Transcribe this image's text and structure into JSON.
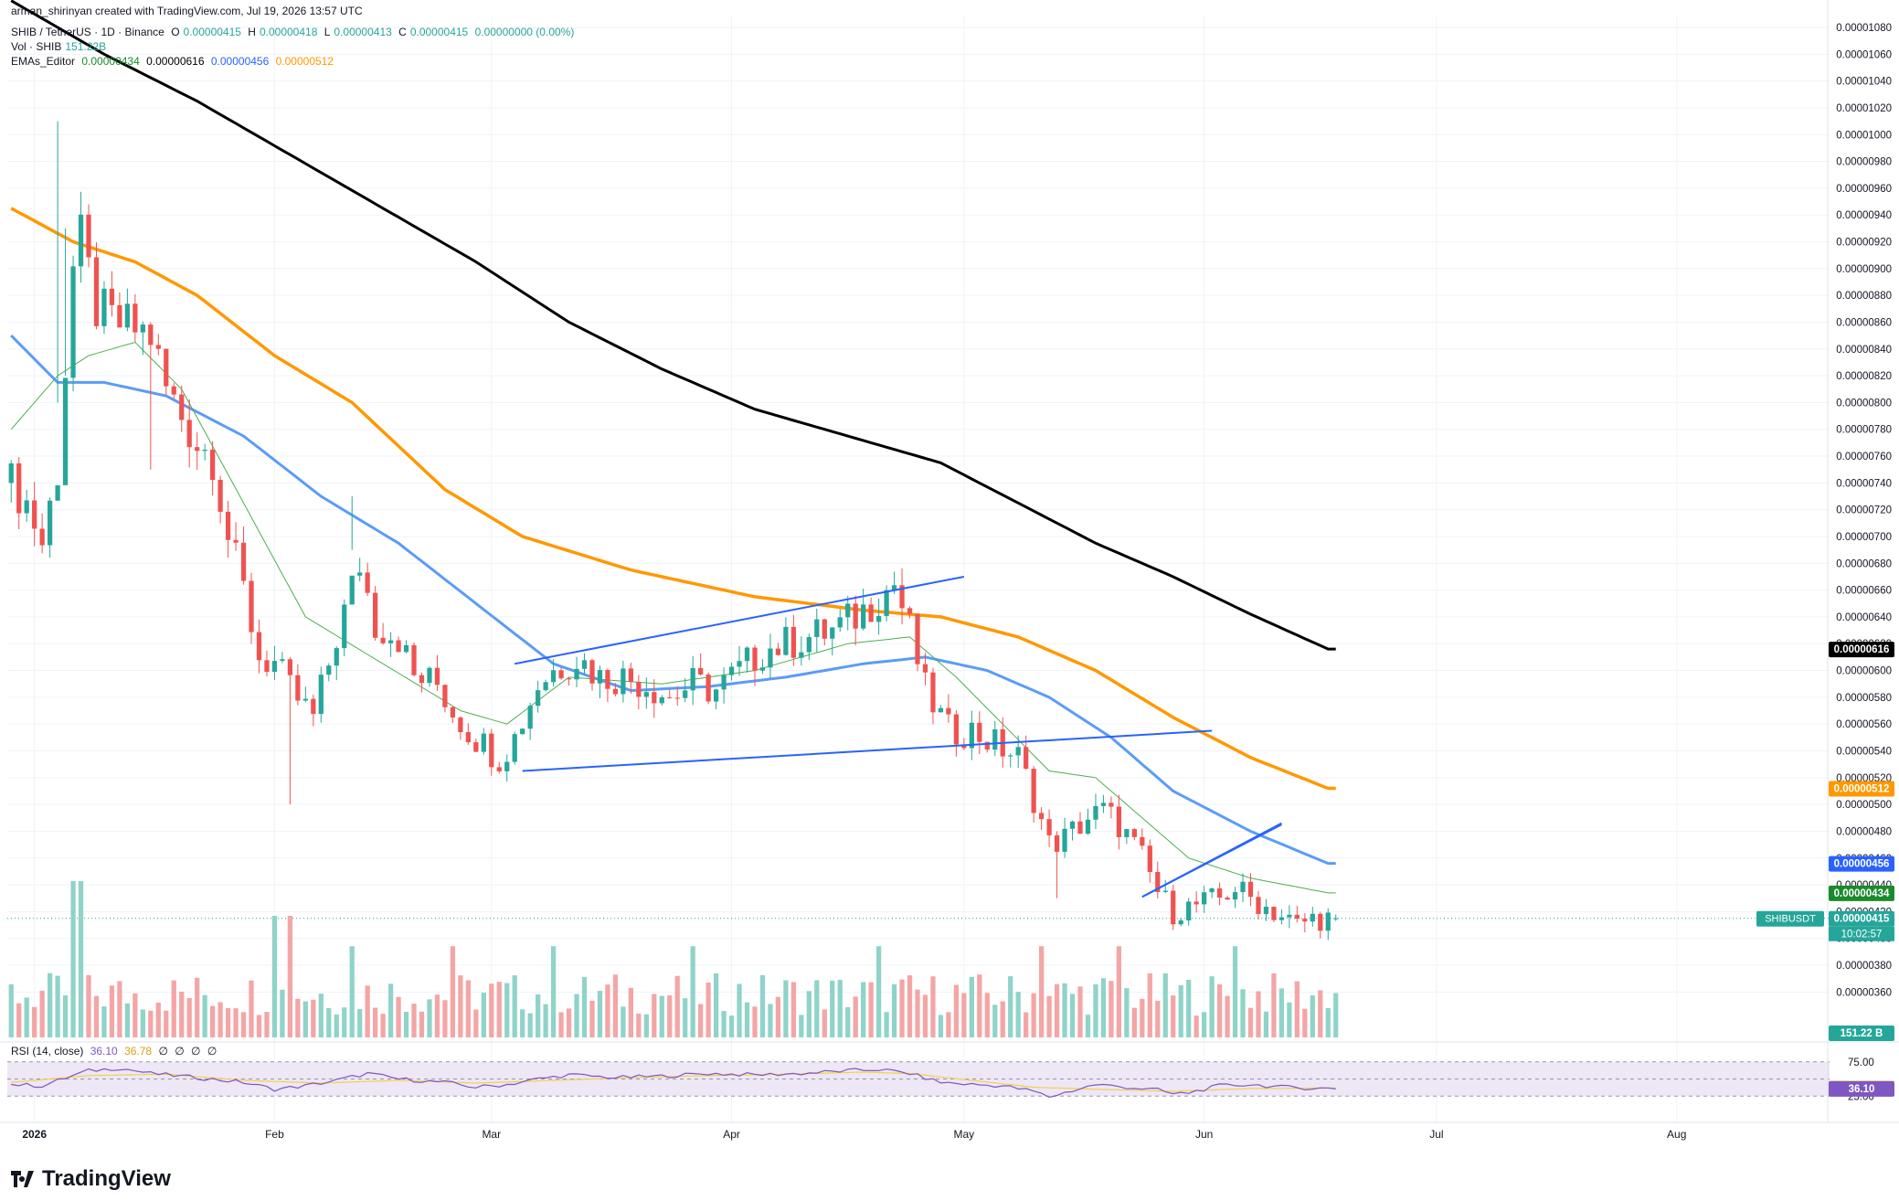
{
  "header": {
    "credit": "arman_shirinyan created with TradingView.com, Jul 19, 2026 13:57 UTC",
    "symbol_line": "SHIB / TetherUS · 1D · Binance",
    "ohlc": {
      "o_label": "O",
      "o": "0.00000415",
      "h_label": "H",
      "h": "0.00000418",
      "l_label": "L",
      "l": "0.00000413",
      "c_label": "C",
      "c": "0.00000415",
      "change": "0.00000000 (0.00%)"
    },
    "vol_line": "Vol · SHIB",
    "vol_value": "151.22B",
    "ema_line": "EMAs_Editor",
    "ema_values": [
      "0.00000434",
      "0.00000616",
      "0.00000456",
      "0.00000512"
    ],
    "rsi_line": "RSI (14, close)",
    "rsi_values": [
      "36.10",
      "36.78",
      "∅",
      "∅",
      "∅",
      "∅"
    ]
  },
  "brand": {
    "name": "TradingView"
  },
  "colors": {
    "up": "#26a69a",
    "down": "#ef5350",
    "up_vol": "#8fd3c9",
    "down_vol": "#f4a5a5",
    "ema20": "#4caf50",
    "ema50": "#2962ff",
    "ema100": "#ff9800",
    "ema200": "#000000",
    "trendline": "#2962ff",
    "rsi": "#7e57c2",
    "rsi_ma": "#f5d04b",
    "rsi_band": "#ede7f6"
  },
  "chart_data": {
    "type": "candlestick",
    "title": "SHIB / TetherUS · 1D · Binance",
    "y_axis": {
      "min": 3.5e-06,
      "max": 1.08e-05,
      "ticks": [
        "0.00001080",
        "0.00001060",
        "0.00001040",
        "0.00001020",
        "0.00001000",
        "0.00000980",
        "0.00000960",
        "0.00000940",
        "0.00000920",
        "0.00000900",
        "0.00000880",
        "0.00000860",
        "0.00000840",
        "0.00000820",
        "0.00000800",
        "0.00000780",
        "0.00000760",
        "0.00000740",
        "0.00000720",
        "0.00000700",
        "0.00000680",
        "0.00000660",
        "0.00000640",
        "0.00000620",
        "0.00000600",
        "0.00000580",
        "0.00000560",
        "0.00000540",
        "0.00000520",
        "0.00000500",
        "0.00000480",
        "0.00000460",
        "0.00000440",
        "0.00000420",
        "0.00000400",
        "0.00000380",
        "0.00000360"
      ]
    },
    "x_axis": {
      "ticks": [
        {
          "label": "2026",
          "bold": true,
          "date": "2026-01-01"
        },
        {
          "label": "Feb",
          "bold": false,
          "date": "2026-02-01"
        },
        {
          "label": "Mar",
          "bold": false,
          "date": "2026-03-01"
        },
        {
          "label": "Apr",
          "bold": false,
          "date": "2026-04-01"
        },
        {
          "label": "May",
          "bold": false,
          "date": "2026-05-01"
        },
        {
          "label": "Jun",
          "bold": false,
          "date": "2026-06-01"
        },
        {
          "label": "Jul",
          "bold": false,
          "date": "2026-07-01"
        },
        {
          "label": "Aug",
          "bold": false,
          "date": "2026-08-01"
        }
      ],
      "start_date": "2025-12-29",
      "end_date": "2026-08-22"
    },
    "price_key_points": [
      [
        0,
        7.4
      ],
      [
        2,
        7.25
      ],
      [
        4,
        6.95
      ],
      [
        6,
        7.5
      ],
      [
        8,
        9.0
      ],
      [
        9,
        9.2
      ],
      [
        11,
        8.7
      ],
      [
        13,
        8.6
      ],
      [
        16,
        8.55
      ],
      [
        18,
        8.5
      ],
      [
        20,
        8.1
      ],
      [
        22,
        7.9
      ],
      [
        24,
        7.7
      ],
      [
        26,
        7.6
      ],
      [
        28,
        7.0
      ],
      [
        30,
        6.6
      ],
      [
        32,
        6.1
      ],
      [
        34,
        6.05
      ],
      [
        36,
        5.85
      ],
      [
        39,
        5.65
      ],
      [
        42,
        6.25
      ],
      [
        45,
        6.8
      ],
      [
        47,
        6.35
      ],
      [
        50,
        6.25
      ],
      [
        52,
        5.95
      ],
      [
        55,
        5.9
      ],
      [
        57,
        5.7
      ],
      [
        59,
        5.55
      ],
      [
        61,
        5.45
      ],
      [
        63,
        5.35
      ],
      [
        65,
        5.5
      ],
      [
        68,
        5.9
      ],
      [
        70,
        6.0
      ],
      [
        73,
        6.1
      ],
      [
        76,
        5.95
      ],
      [
        79,
        5.95
      ],
      [
        82,
        5.9
      ],
      [
        85,
        5.8
      ],
      [
        88,
        5.9
      ],
      [
        91,
        5.85
      ],
      [
        94,
        6.0
      ],
      [
        97,
        6.15
      ],
      [
        100,
        6.2
      ],
      [
        103,
        6.25
      ],
      [
        106,
        6.3
      ],
      [
        109,
        6.4
      ],
      [
        112,
        6.55
      ],
      [
        114,
        6.65
      ],
      [
        116,
        6.3
      ],
      [
        118,
        5.85
      ],
      [
        121,
        5.55
      ],
      [
        124,
        5.55
      ],
      [
        127,
        5.45
      ],
      [
        130,
        5.35
      ],
      [
        132,
        5.05
      ],
      [
        134,
        4.7
      ],
      [
        136,
        4.75
      ],
      [
        139,
        4.9
      ],
      [
        141,
        4.95
      ],
      [
        143,
        4.85
      ],
      [
        146,
        4.6
      ],
      [
        148,
        4.35
      ],
      [
        150,
        4.2
      ],
      [
        153,
        4.25
      ],
      [
        156,
        4.3
      ],
      [
        158,
        4.38
      ],
      [
        160,
        4.3
      ],
      [
        163,
        4.2
      ],
      [
        166,
        4.1
      ],
      [
        168,
        4.15
      ],
      [
        170,
        4.15
      ]
    ],
    "special_candles": {
      "6": {
        "h": 10.1,
        "l": 8.0
      },
      "7": {
        "h": 9.3,
        "l": 8.2
      },
      "18": {
        "h": 8.6,
        "l": 7.5
      },
      "36": {
        "h": 6.1,
        "l": 5.0
      },
      "44": {
        "h": 7.3,
        "l": 6.9
      },
      "135": {
        "h": 4.8,
        "l": 4.3
      }
    },
    "ema20_key": [
      [
        0,
        7.8
      ],
      [
        6,
        8.2
      ],
      [
        10,
        8.35
      ],
      [
        16,
        8.45
      ],
      [
        22,
        8.1
      ],
      [
        30,
        7.25
      ],
      [
        38,
        6.4
      ],
      [
        48,
        6.05
      ],
      [
        58,
        5.7
      ],
      [
        64,
        5.6
      ],
      [
        72,
        5.95
      ],
      [
        84,
        5.9
      ],
      [
        96,
        6.0
      ],
      [
        108,
        6.2
      ],
      [
        116,
        6.25
      ],
      [
        122,
        5.95
      ],
      [
        128,
        5.6
      ],
      [
        134,
        5.25
      ],
      [
        140,
        5.2
      ],
      [
        146,
        4.9
      ],
      [
        152,
        4.6
      ],
      [
        160,
        4.45
      ],
      [
        170,
        4.34
      ]
    ],
    "ema50_key": [
      [
        0,
        8.5
      ],
      [
        6,
        8.15
      ],
      [
        12,
        8.15
      ],
      [
        20,
        8.05
      ],
      [
        30,
        7.75
      ],
      [
        40,
        7.3
      ],
      [
        50,
        6.95
      ],
      [
        60,
        6.5
      ],
      [
        70,
        6.05
      ],
      [
        80,
        5.85
      ],
      [
        90,
        5.88
      ],
      [
        100,
        5.95
      ],
      [
        110,
        6.05
      ],
      [
        118,
        6.1
      ],
      [
        126,
        6.0
      ],
      [
        134,
        5.8
      ],
      [
        142,
        5.5
      ],
      [
        150,
        5.1
      ],
      [
        160,
        4.8
      ],
      [
        170,
        4.56
      ]
    ],
    "ema100_key": [
      [
        0,
        9.45
      ],
      [
        8,
        9.2
      ],
      [
        16,
        9.05
      ],
      [
        24,
        8.8
      ],
      [
        34,
        8.35
      ],
      [
        44,
        8.0
      ],
      [
        56,
        7.35
      ],
      [
        66,
        7.0
      ],
      [
        80,
        6.75
      ],
      [
        96,
        6.55
      ],
      [
        110,
        6.45
      ],
      [
        120,
        6.4
      ],
      [
        130,
        6.25
      ],
      [
        140,
        6.0
      ],
      [
        150,
        5.65
      ],
      [
        160,
        5.35
      ],
      [
        170,
        5.12
      ]
    ],
    "ema200_key": [
      [
        0,
        11.0
      ],
      [
        12,
        10.6
      ],
      [
        24,
        10.25
      ],
      [
        36,
        9.85
      ],
      [
        48,
        9.45
      ],
      [
        60,
        9.05
      ],
      [
        72,
        8.6
      ],
      [
        84,
        8.25
      ],
      [
        96,
        7.95
      ],
      [
        108,
        7.75
      ],
      [
        120,
        7.55
      ],
      [
        130,
        7.25
      ],
      [
        140,
        6.95
      ],
      [
        150,
        6.7
      ],
      [
        160,
        6.42
      ],
      [
        170,
        6.16
      ]
    ],
    "trendlines": [
      {
        "name": "channel-upper",
        "from": [
          65,
          6.05
        ],
        "to": [
          123,
          6.7
        ]
      },
      {
        "name": "channel-lower",
        "from": [
          66,
          5.25
        ],
        "to": [
          155,
          5.55
        ]
      },
      {
        "name": "flag-upper",
        "from": [
          146,
          4.31
        ],
        "to": [
          164,
          4.85
        ]
      },
      {
        "name": "flag-lower",
        "from": [
          146,
          4.31
        ],
        "to": [
          164,
          4.86
        ]
      }
    ],
    "price_labels": [
      {
        "value": "0.00000616",
        "price": 6.16,
        "bg": "#000000",
        "fg": "#ffffff"
      },
      {
        "value": "0.00000512",
        "price": 5.12,
        "bg": "#ff9800",
        "fg": "#ffffff"
      },
      {
        "value": "0.00000456",
        "price": 4.56,
        "bg": "#2962ff",
        "fg": "#ffffff"
      },
      {
        "value": "0.00000434",
        "price": 4.34,
        "bg": "#1b8a2c",
        "fg": "#ffffff"
      },
      {
        "value": "0.00000415",
        "price": 4.15,
        "bg": "#26a69a",
        "fg": "#ffffff",
        "tag": "SHIBUSDT",
        "countdown": "10:02:57"
      }
    ],
    "volume": {
      "last_label": "151.22 B"
    },
    "rsi": {
      "upper": "75.00",
      "lower": "25.00",
      "value": "36.10",
      "ma_value": "36.78",
      "key": [
        [
          0,
          42
        ],
        [
          4,
          40
        ],
        [
          8,
          55
        ],
        [
          10,
          62
        ],
        [
          14,
          66
        ],
        [
          18,
          58
        ],
        [
          24,
          52
        ],
        [
          30,
          45
        ],
        [
          34,
          35
        ],
        [
          38,
          40
        ],
        [
          42,
          48
        ],
        [
          46,
          58
        ],
        [
          50,
          50
        ],
        [
          56,
          45
        ],
        [
          60,
          38
        ],
        [
          64,
          42
        ],
        [
          68,
          50
        ],
        [
          72,
          56
        ],
        [
          78,
          52
        ],
        [
          84,
          54
        ],
        [
          90,
          58
        ],
        [
          96,
          56
        ],
        [
          102,
          58
        ],
        [
          108,
          62
        ],
        [
          112,
          64
        ],
        [
          116,
          58
        ],
        [
          120,
          45
        ],
        [
          124,
          42
        ],
        [
          128,
          40
        ],
        [
          132,
          32
        ],
        [
          134,
          24
        ],
        [
          136,
          30
        ],
        [
          140,
          42
        ],
        [
          144,
          38
        ],
        [
          148,
          34
        ],
        [
          150,
          28
        ],
        [
          152,
          30
        ],
        [
          156,
          40
        ],
        [
          160,
          42
        ],
        [
          164,
          38
        ],
        [
          170,
          36.1
        ]
      ],
      "ma_key": [
        [
          0,
          45
        ],
        [
          10,
          55
        ],
        [
          20,
          57
        ],
        [
          30,
          48
        ],
        [
          40,
          44
        ],
        [
          50,
          48
        ],
        [
          60,
          44
        ],
        [
          70,
          48
        ],
        [
          80,
          52
        ],
        [
          90,
          55
        ],
        [
          100,
          57
        ],
        [
          110,
          60
        ],
        [
          116,
          58
        ],
        [
          124,
          48
        ],
        [
          132,
          38
        ],
        [
          140,
          35
        ],
        [
          150,
          32
        ],
        [
          160,
          36
        ],
        [
          170,
          36.78
        ]
      ]
    }
  }
}
